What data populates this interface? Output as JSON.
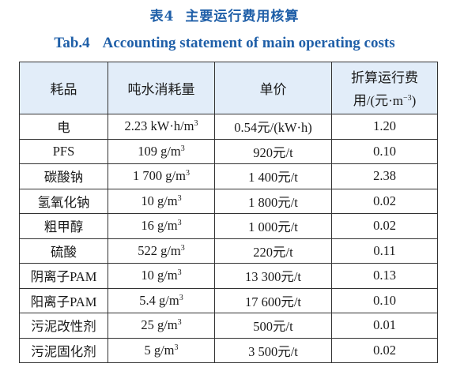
{
  "caption": {
    "cn_label": "表4",
    "cn_title": "主要运行费用核算",
    "en_label": "Tab.4",
    "en_title": "Accounting statement of main operating costs"
  },
  "table": {
    "headers": [
      "耗品",
      "吨水消耗量",
      "单价"
    ],
    "header_last_line1": "折算运行费",
    "header_last_line2": "用/(元·m",
    "header_last_sup": "−3",
    "header_last_tail": ")",
    "rows": [
      {
        "item": "电",
        "amount": "2.23 kW·h/m",
        "amount_sup": "3",
        "price": "0.54元/(kW·h)",
        "cost": "1.20"
      },
      {
        "item": "PFS",
        "amount": "109 g/m",
        "amount_sup": "3",
        "price": "920元/t",
        "cost": "0.10"
      },
      {
        "item": "碳酸钠",
        "amount": "1 700 g/m",
        "amount_sup": "3",
        "price": "1 400元/t",
        "cost": "2.38"
      },
      {
        "item": "氢氧化钠",
        "amount": "10 g/m",
        "amount_sup": "3",
        "price": "1 800元/t",
        "cost": "0.02"
      },
      {
        "item": "粗甲醇",
        "amount": "16 g/m",
        "amount_sup": "3",
        "price": "1 000元/t",
        "cost": "0.02"
      },
      {
        "item": "硫酸",
        "amount": "522 g/m",
        "amount_sup": "3",
        "price": "220元/t",
        "cost": "0.11"
      },
      {
        "item": "阴离子PAM",
        "amount": "10 g/m",
        "amount_sup": "3",
        "price": "13 300元/t",
        "cost": "0.13"
      },
      {
        "item": "阳离子PAM",
        "amount": "5.4 g/m",
        "amount_sup": "3",
        "price": "17 600元/t",
        "cost": "0.10"
      },
      {
        "item": "污泥改性剂",
        "amount": "25 g/m",
        "amount_sup": "3",
        "price": "500元/t",
        "cost": "0.01"
      },
      {
        "item": "污泥固化剂",
        "amount": "5 g/m",
        "amount_sup": "3",
        "price": "3 500元/t",
        "cost": "0.02"
      }
    ]
  }
}
